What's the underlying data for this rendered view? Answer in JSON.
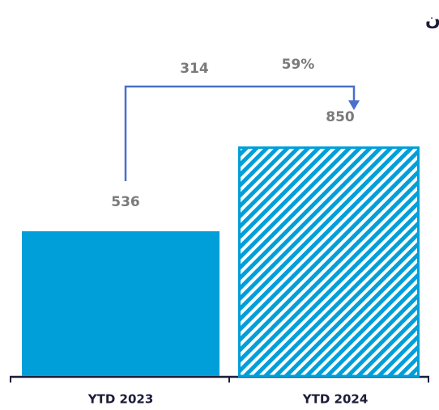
{
  "chart_data": {
    "type": "bar",
    "title": "صافي الربح العائد للمساهمين",
    "categories": [
      "YTD 2023",
      "YTD 2024"
    ],
    "values": [
      536,
      850
    ],
    "colors": [
      "#009fda",
      "#009fda"
    ],
    "hatch": [
      false,
      true
    ],
    "ylim": [
      0,
      1000
    ],
    "annotations": [
      {
        "text": "314"
      },
      {
        "text": "59%"
      }
    ],
    "arrow_color": "#4a6fcc"
  }
}
